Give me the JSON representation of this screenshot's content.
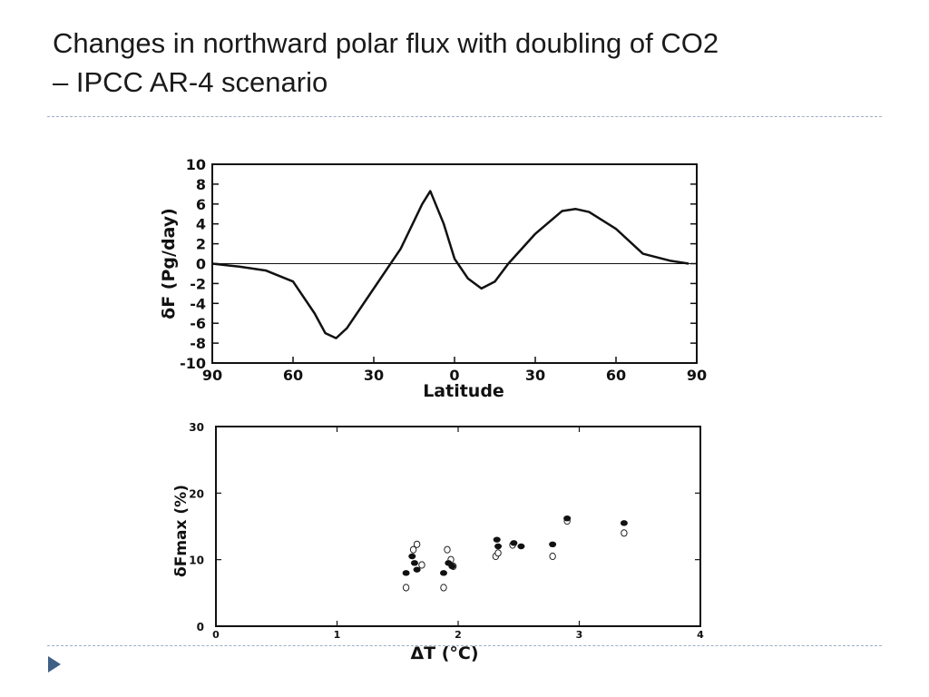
{
  "slide": {
    "title_line1": "Changes in northward polar flux with doubling of CO2",
    "title_line2": "– IPCC AR-4 scenario"
  },
  "icons": {
    "nav": "triangle-right-icon"
  },
  "colors": {
    "divider": "#9bb0c8",
    "nav_arrow": "#3f5f86",
    "ink": "#111111"
  },
  "chart_data": [
    {
      "type": "line",
      "xlabel": "Latitude",
      "ylabel": "δF (Pg/day)",
      "xticks": [
        "90",
        "60",
        "30",
        "0",
        "30",
        "60",
        "90"
      ],
      "yticks": [
        "10",
        "8",
        "6",
        "4",
        "2",
        "0",
        "-2",
        "-4",
        "-6",
        "-8",
        "-10"
      ],
      "xlim": [
        -90,
        90
      ],
      "ylim": [
        -10,
        10
      ],
      "grid": false,
      "reference_line_y": 0,
      "series": [
        {
          "x": [
            -90,
            -80,
            -70,
            -60,
            -52,
            -48,
            -44,
            -40,
            -30,
            -20,
            -12,
            -9,
            -4,
            0,
            5,
            10,
            15,
            20,
            30,
            40,
            45,
            50,
            60,
            70,
            80,
            87
          ],
          "values": [
            0,
            -0.3,
            -0.7,
            -1.8,
            -5.0,
            -7.0,
            -7.5,
            -6.5,
            -2.5,
            1.5,
            6.0,
            7.3,
            4.0,
            0.5,
            -1.5,
            -2.5,
            -1.8,
            0,
            3.0,
            5.3,
            5.5,
            5.2,
            3.5,
            1.0,
            0.3,
            0
          ]
        }
      ]
    },
    {
      "type": "scatter",
      "xlabel": "ΔT (°C)",
      "ylabel": "δFmax (%)",
      "xticks": [
        "0",
        "1",
        "2",
        "3",
        "4"
      ],
      "yticks": [
        "30",
        "20",
        "10",
        "0"
      ],
      "xlim": [
        0,
        4
      ],
      "ylim": [
        0,
        30
      ],
      "grid": false,
      "series": [
        {
          "marker": "filled",
          "x": [
            1.57,
            1.62,
            1.64,
            1.66,
            1.88,
            1.92,
            1.95,
            2.32,
            2.33,
            2.46,
            2.52,
            2.78,
            2.9,
            3.37
          ],
          "values": [
            8.0,
            10.5,
            9.5,
            8.5,
            8.0,
            9.5,
            9.0,
            13.0,
            12.0,
            12.5,
            12.0,
            12.3,
            16.2,
            15.5
          ]
        },
        {
          "marker": "open",
          "x": [
            1.57,
            1.63,
            1.66,
            1.7,
            1.88,
            1.91,
            1.94,
            1.96,
            2.31,
            2.33,
            2.45,
            2.78,
            2.9,
            3.37
          ],
          "values": [
            5.8,
            11.5,
            12.3,
            9.2,
            5.8,
            11.5,
            10.0,
            9.0,
            10.5,
            11.0,
            12.2,
            10.5,
            15.8,
            14.0
          ]
        }
      ]
    }
  ]
}
